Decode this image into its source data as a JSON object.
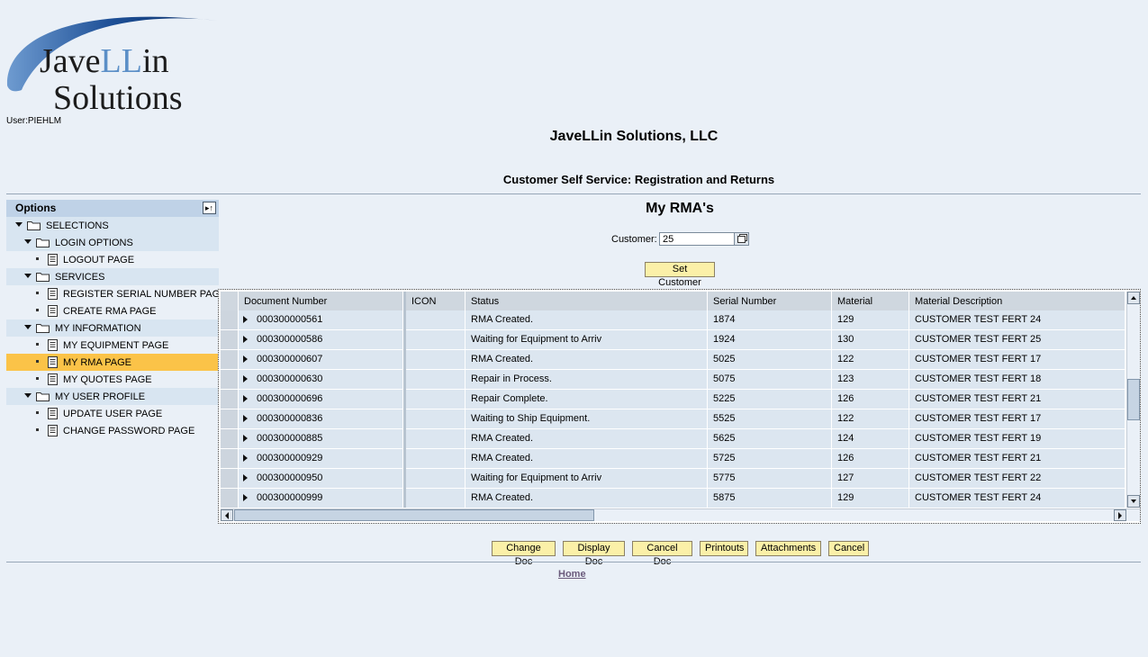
{
  "logo": {
    "line1_a": "Jave",
    "line1_b": "LL",
    "line1_c": "in",
    "line2": "Solutions"
  },
  "user": "User:PIEHLM",
  "company": "JaveLLin Solutions, LLC",
  "subtitle": "Customer Self Service: Registration and Returns",
  "sidebar": {
    "header": "Options",
    "toggle_icon": "▸↑",
    "items": [
      {
        "label": "SELECTIONS",
        "type": "folder",
        "level": 0
      },
      {
        "label": "LOGIN OPTIONS",
        "type": "folder",
        "level": 1
      },
      {
        "label": "LOGOUT PAGE",
        "type": "page",
        "level": 2
      },
      {
        "label": "SERVICES",
        "type": "folder",
        "level": 1
      },
      {
        "label": "REGISTER SERIAL NUMBER PAGE",
        "type": "page",
        "level": 2
      },
      {
        "label": "CREATE RMA PAGE",
        "type": "page",
        "level": 2
      },
      {
        "label": "MY INFORMATION",
        "type": "folder",
        "level": 1
      },
      {
        "label": "MY EQUIPMENT PAGE",
        "type": "page",
        "level": 2
      },
      {
        "label": "MY RMA PAGE",
        "type": "page",
        "level": 2,
        "selected": true
      },
      {
        "label": "MY QUOTES PAGE",
        "type": "page",
        "level": 2
      },
      {
        "label": "MY USER PROFILE",
        "type": "folder",
        "level": 1
      },
      {
        "label": "UPDATE USER PAGE",
        "type": "page",
        "level": 2
      },
      {
        "label": "CHANGE PASSWORD PAGE",
        "type": "page",
        "level": 2
      }
    ]
  },
  "main": {
    "title": "My RMA's",
    "customer_label": "Customer:",
    "customer_value": "25",
    "set_customer": "Set Customer"
  },
  "table": {
    "columns": [
      "Document Number",
      "ICON",
      "Status",
      "Serial Number",
      "Material",
      "Material Description"
    ],
    "rows": [
      [
        "000300000561",
        "",
        "RMA Created.",
        "1874",
        "129",
        "CUSTOMER TEST FERT 24"
      ],
      [
        "000300000586",
        "",
        "Waiting for Equipment to Arriv",
        "1924",
        "130",
        "CUSTOMER TEST FERT 25"
      ],
      [
        "000300000607",
        "",
        "RMA Created.",
        "5025",
        "122",
        "CUSTOMER TEST FERT 17"
      ],
      [
        "000300000630",
        "",
        "Repair in Process.",
        "5075",
        "123",
        "CUSTOMER TEST FERT 18"
      ],
      [
        "000300000696",
        "",
        "Repair Complete.",
        "5225",
        "126",
        "CUSTOMER TEST FERT 21"
      ],
      [
        "000300000836",
        "",
        "Waiting to Ship Equipment.",
        "5525",
        "122",
        "CUSTOMER TEST FERT 17"
      ],
      [
        "000300000885",
        "",
        "RMA Created.",
        "5625",
        "124",
        "CUSTOMER TEST FERT 19"
      ],
      [
        "000300000929",
        "",
        "RMA Created.",
        "5725",
        "126",
        "CUSTOMER TEST FERT 21"
      ],
      [
        "000300000950",
        "",
        "Waiting for Equipment to Arriv",
        "5775",
        "127",
        "CUSTOMER TEST FERT 22"
      ],
      [
        "000300000999",
        "",
        "RMA Created.",
        "5875",
        "129",
        "CUSTOMER TEST FERT 24"
      ]
    ]
  },
  "actions": {
    "change_doc": "Change Doc",
    "display_doc": "Display Doc",
    "cancel_doc": "Cancel Doc",
    "printouts": "Printouts",
    "attachments": "Attachments",
    "cancel": "Cancel"
  },
  "footer": {
    "home": "Home"
  },
  "colors": {
    "background": "#eaf0f7",
    "folder_row": "#d8e5f1",
    "selected_row": "#fbc348",
    "button_bg": "#fbf0a8",
    "table_row": "#dce6f0",
    "table_header": "#cfd7df"
  }
}
